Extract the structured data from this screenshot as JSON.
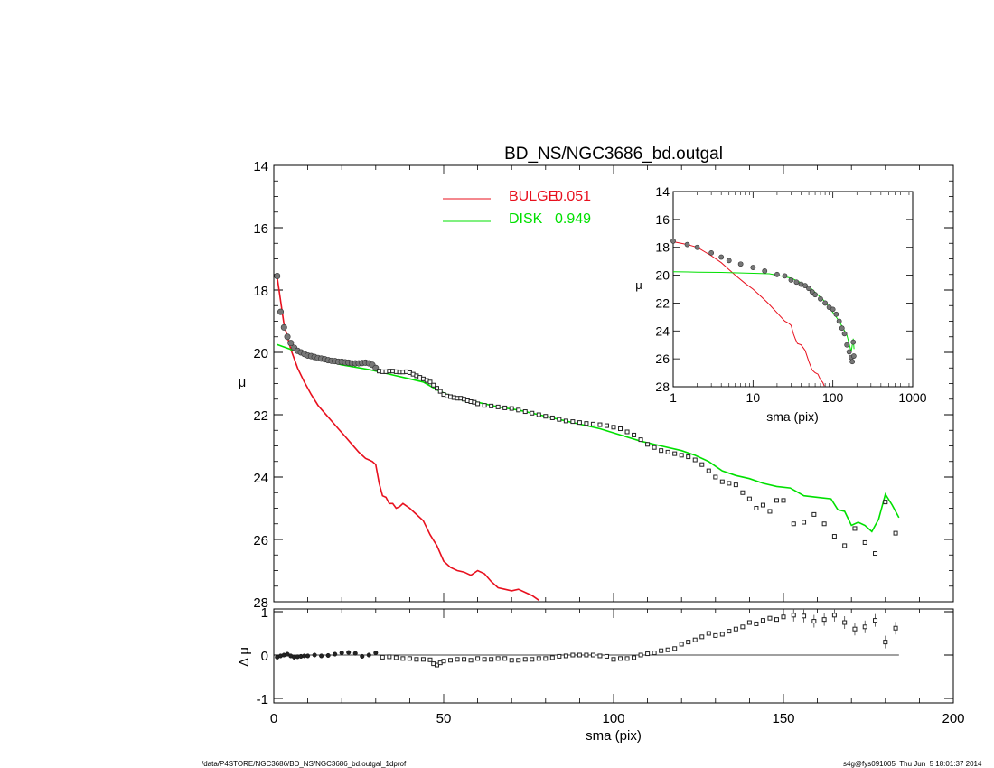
{
  "figure": {
    "title": "BD_NS/NGC3686_bd.outgal",
    "footer_left": "/data/P4STORE/NGC3686/BD_NS/NGC3686_bd.outgal_1dprof",
    "footer_right": "s4g@fys091005  Thu Jun  5 18:01:37 2014"
  },
  "chart_data": [
    {
      "id": "main",
      "type": "line",
      "title": "BD_NS/NGC3686_bd.outgal",
      "ylabel": "μ",
      "xlabel": "",
      "xlim": [
        0,
        200
      ],
      "ylim": [
        28,
        14
      ],
      "y_inverted": true,
      "grid": false,
      "yticks": [
        14,
        16,
        18,
        20,
        22,
        24,
        26,
        28
      ],
      "legend": {
        "position": "top-center",
        "entries": [
          {
            "label": "BULGE",
            "value": "0.051",
            "color": "#e8101e"
          },
          {
            "label": "DISK",
            "value": "0.949",
            "color": "#00e000"
          }
        ]
      },
      "series": [
        {
          "name": "BULGE",
          "color": "#e8101e",
          "x": [
            1,
            3,
            5,
            7,
            9,
            11,
            13,
            15,
            17,
            19,
            21,
            23,
            25,
            27,
            28,
            29,
            30,
            31,
            32,
            33,
            34,
            35,
            36,
            37,
            38,
            40,
            42,
            44,
            46,
            48,
            50,
            52,
            54,
            56,
            58,
            60,
            62,
            64,
            66,
            68,
            70,
            72,
            74,
            76,
            78
          ],
          "y": [
            17.6,
            19.1,
            19.9,
            20.5,
            20.95,
            21.35,
            21.7,
            21.95,
            22.2,
            22.45,
            22.7,
            22.95,
            23.2,
            23.4,
            23.45,
            23.5,
            23.6,
            24.2,
            24.6,
            24.65,
            24.85,
            24.85,
            25.0,
            24.95,
            24.85,
            25.0,
            25.2,
            25.4,
            25.85,
            26.2,
            26.7,
            26.9,
            27.0,
            27.05,
            27.15,
            27.0,
            27.1,
            27.35,
            27.55,
            27.6,
            27.65,
            27.6,
            27.7,
            27.8,
            27.95
          ]
        },
        {
          "name": "DISK",
          "color": "#00e000",
          "x": [
            1,
            10,
            20,
            28,
            32,
            36,
            40,
            44,
            48,
            52,
            56,
            60,
            66,
            72,
            78,
            84,
            90,
            96,
            102,
            108,
            114,
            120,
            124,
            128,
            132,
            136,
            140,
            144,
            148,
            152,
            156,
            160,
            164,
            166,
            168,
            170,
            172,
            174,
            176,
            178,
            180,
            182,
            184
          ],
          "y": [
            19.75,
            20.1,
            20.4,
            20.55,
            20.65,
            20.75,
            20.85,
            20.95,
            21.2,
            21.4,
            21.55,
            21.6,
            21.75,
            21.85,
            22.0,
            22.15,
            22.3,
            22.45,
            22.65,
            22.85,
            23.0,
            23.15,
            23.3,
            23.5,
            23.8,
            23.95,
            24.05,
            24.2,
            24.3,
            24.35,
            24.6,
            24.65,
            24.7,
            25.05,
            25.1,
            25.55,
            25.45,
            25.55,
            25.75,
            25.35,
            24.55,
            24.9,
            25.3
          ]
        },
        {
          "name": "",
          "color": "#000000",
          "marker": "square",
          "x": [
            1,
            2,
            3,
            4,
            5,
            6,
            7,
            8,
            9,
            10,
            11,
            12,
            13,
            14,
            15,
            16,
            17,
            18,
            19,
            20,
            21,
            22,
            23,
            24,
            25,
            26,
            27,
            28,
            29,
            30,
            31,
            32,
            33,
            34,
            35,
            36,
            37,
            38,
            39,
            40,
            41,
            42,
            43,
            44,
            45,
            46,
            47,
            48,
            49,
            50,
            51,
            52,
            53,
            54,
            55,
            56,
            57,
            58,
            59,
            60,
            62,
            64,
            66,
            68,
            70,
            72,
            74,
            76,
            78,
            80,
            82,
            84,
            86,
            88,
            90,
            92,
            94,
            96,
            98,
            100,
            102,
            104,
            106,
            108,
            110,
            112,
            114,
            116,
            118,
            120,
            122,
            124,
            126,
            128,
            130,
            132,
            134,
            136,
            138,
            140,
            142,
            144,
            146,
            148,
            150,
            153,
            156,
            159,
            162,
            165,
            168,
            171,
            174,
            177,
            180,
            183
          ],
          "y": [
            17.55,
            18.7,
            19.2,
            19.5,
            19.7,
            19.85,
            19.95,
            20.0,
            20.05,
            20.1,
            20.12,
            20.15,
            20.18,
            20.2,
            20.22,
            20.25,
            20.27,
            20.28,
            20.3,
            20.3,
            20.32,
            20.33,
            20.35,
            20.35,
            20.35,
            20.34,
            20.33,
            20.35,
            20.4,
            20.5,
            20.6,
            20.62,
            20.62,
            20.6,
            20.6,
            20.62,
            20.63,
            20.63,
            20.62,
            20.65,
            20.7,
            20.75,
            20.8,
            20.85,
            20.9,
            20.95,
            21.05,
            21.15,
            21.25,
            21.35,
            21.4,
            21.42,
            21.45,
            21.47,
            21.47,
            21.5,
            21.55,
            21.58,
            21.6,
            21.65,
            21.7,
            21.72,
            21.75,
            21.78,
            21.8,
            21.85,
            21.9,
            21.95,
            22.0,
            22.05,
            22.1,
            22.15,
            22.2,
            22.22,
            22.25,
            22.28,
            22.3,
            22.32,
            22.35,
            22.4,
            22.45,
            22.55,
            22.65,
            22.8,
            22.95,
            23.05,
            23.15,
            23.2,
            23.25,
            23.3,
            23.35,
            23.45,
            23.6,
            23.8,
            24.0,
            24.15,
            24.2,
            24.25,
            24.5,
            24.7,
            25.0,
            24.9,
            25.1,
            24.75,
            24.75,
            25.5,
            25.45,
            25.2,
            25.5,
            25.9,
            26.2,
            25.65,
            26.1,
            26.45,
            24.8,
            25.8
          ]
        }
      ]
    },
    {
      "id": "inset",
      "type": "line",
      "ylabel": "μ",
      "xlabel": "sma (pix)",
      "xscale": "log",
      "xlim": [
        1,
        1000
      ],
      "ylim": [
        28,
        14
      ],
      "y_inverted": true,
      "xticks": [
        1,
        10,
        100,
        1000
      ],
      "yticks": [
        14,
        16,
        18,
        20,
        22,
        24,
        26,
        28
      ],
      "series": [
        {
          "name": "BULGE",
          "color": "#e8101e",
          "x": [
            1,
            1.5,
            2,
            3,
            4,
            5,
            6,
            8,
            10,
            13,
            16,
            20,
            25,
            28,
            30,
            32,
            34,
            36,
            40,
            45,
            50,
            55,
            60,
            65,
            70,
            75,
            78
          ],
          "y": [
            17.6,
            17.8,
            18.0,
            18.6,
            19.1,
            19.6,
            20.0,
            20.6,
            21.0,
            21.6,
            22.1,
            22.7,
            23.3,
            23.45,
            23.6,
            24.2,
            24.6,
            24.9,
            25.0,
            25.4,
            26.2,
            26.8,
            27.0,
            27.1,
            27.5,
            27.7,
            27.95
          ]
        },
        {
          "name": "DISK",
          "color": "#00e000",
          "x": [
            1,
            2,
            4,
            8,
            16,
            30,
            50,
            80,
            120,
            150,
            170,
            180,
            184
          ],
          "y": [
            19.75,
            19.78,
            19.8,
            19.85,
            19.9,
            20.2,
            20.8,
            21.9,
            23.3,
            24.3,
            25.5,
            24.55,
            25.3
          ]
        },
        {
          "name": "",
          "color": "#000000",
          "marker": "square",
          "x": [
            1,
            1.5,
            2,
            3,
            4,
            5,
            7,
            10,
            14,
            20,
            25,
            30,
            35,
            40,
            45,
            50,
            55,
            60,
            70,
            80,
            90,
            100,
            110,
            120,
            130,
            140,
            150,
            160,
            170,
            175,
            180,
            183
          ],
          "y": [
            17.55,
            17.8,
            18.0,
            18.4,
            18.7,
            18.95,
            19.2,
            19.45,
            19.7,
            19.95,
            20.05,
            20.35,
            20.5,
            20.65,
            20.75,
            20.95,
            21.2,
            21.4,
            21.7,
            22.0,
            22.3,
            22.45,
            22.8,
            23.3,
            23.8,
            24.2,
            25.0,
            25.5,
            25.9,
            26.2,
            24.8,
            25.8
          ]
        }
      ]
    },
    {
      "id": "residual",
      "type": "scatter",
      "ylabel": "Δ μ",
      "xlabel": "sma (pix)",
      "xlim": [
        0,
        200
      ],
      "ylim": [
        -1,
        1
      ],
      "xticks": [
        0,
        50,
        100,
        150,
        200
      ],
      "yticks": [
        -1,
        0,
        1
      ],
      "reference_line": 0,
      "series": [
        {
          "name": "",
          "color": "#000000",
          "marker": "square",
          "x": [
            1,
            2,
            3,
            4,
            5,
            6,
            7,
            8,
            9,
            10,
            12,
            14,
            16,
            18,
            20,
            22,
            24,
            26,
            28,
            30,
            32,
            34,
            36,
            38,
            40,
            42,
            44,
            46,
            47,
            48,
            49,
            50,
            52,
            54,
            56,
            58,
            60,
            62,
            64,
            66,
            68,
            70,
            72,
            74,
            76,
            78,
            80,
            82,
            84,
            86,
            88,
            90,
            92,
            94,
            96,
            98,
            100,
            102,
            104,
            106,
            108,
            110,
            112,
            114,
            116,
            118,
            120,
            122,
            124,
            126,
            128,
            130,
            132,
            134,
            136,
            138,
            140,
            142,
            144,
            146,
            148,
            150,
            153,
            156,
            159,
            162,
            165,
            168,
            171,
            174,
            177,
            180,
            183
          ],
          "y": [
            -0.05,
            -0.02,
            0.0,
            0.02,
            -0.02,
            -0.05,
            -0.04,
            -0.03,
            -0.02,
            -0.02,
            0.0,
            -0.02,
            -0.01,
            0.02,
            0.05,
            0.06,
            0.04,
            -0.03,
            0.0,
            0.05,
            -0.05,
            -0.04,
            -0.06,
            -0.08,
            -0.08,
            -0.1,
            -0.1,
            -0.11,
            -0.2,
            -0.23,
            -0.18,
            -0.14,
            -0.12,
            -0.1,
            -0.1,
            -0.12,
            -0.08,
            -0.1,
            -0.1,
            -0.08,
            -0.08,
            -0.12,
            -0.12,
            -0.1,
            -0.1,
            -0.08,
            -0.08,
            -0.06,
            -0.03,
            -0.02,
            0.0,
            0.0,
            0.0,
            0.0,
            -0.02,
            -0.03,
            -0.1,
            -0.08,
            -0.08,
            -0.06,
            0.0,
            0.03,
            0.05,
            0.1,
            0.12,
            0.15,
            0.25,
            0.3,
            0.35,
            0.42,
            0.5,
            0.45,
            0.48,
            0.55,
            0.6,
            0.65,
            0.75,
            0.72,
            0.8,
            0.85,
            0.82,
            0.88,
            0.92,
            0.9,
            0.78,
            0.82,
            0.92,
            0.75,
            0.6,
            0.65,
            0.8,
            0.3,
            0.62
          ]
        }
      ]
    }
  ]
}
